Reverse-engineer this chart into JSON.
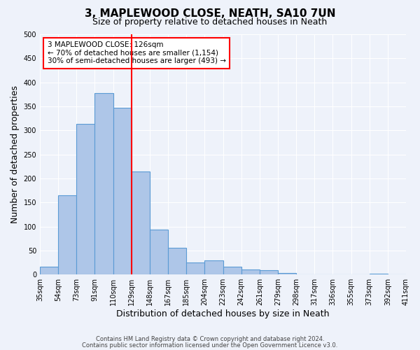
{
  "title": "3, MAPLEWOOD CLOSE, NEATH, SA10 7UN",
  "subtitle": "Size of property relative to detached houses in Neath",
  "xlabel": "Distribution of detached houses by size in Neath",
  "ylabel": "Number of detached properties",
  "bar_color": "#aec6e8",
  "bar_edge_color": "#5b9bd5",
  "background_color": "#eef2fa",
  "tick_labels": [
    "35sqm",
    "54sqm",
    "73sqm",
    "91sqm",
    "110sqm",
    "129sqm",
    "148sqm",
    "167sqm",
    "185sqm",
    "204sqm",
    "223sqm",
    "242sqm",
    "261sqm",
    "279sqm",
    "298sqm",
    "317sqm",
    "336sqm",
    "355sqm",
    "373sqm",
    "392sqm",
    "411sqm"
  ],
  "bar_heights": [
    16,
    165,
    313,
    378,
    347,
    215,
    93,
    55,
    25,
    29,
    16,
    10,
    9,
    3,
    1,
    0,
    0,
    0,
    2,
    0
  ],
  "ylim": [
    0,
    500
  ],
  "yticks": [
    0,
    50,
    100,
    150,
    200,
    250,
    300,
    350,
    400,
    450,
    500
  ],
  "red_line_x": 5,
  "annotation_title": "3 MAPLEWOOD CLOSE: 126sqm",
  "annotation_line1": "← 70% of detached houses are smaller (1,154)",
  "annotation_line2": "30% of semi-detached houses are larger (493) →",
  "footer_line1": "Contains HM Land Registry data © Crown copyright and database right 2024.",
  "footer_line2": "Contains public sector information licensed under the Open Government Licence v3.0."
}
